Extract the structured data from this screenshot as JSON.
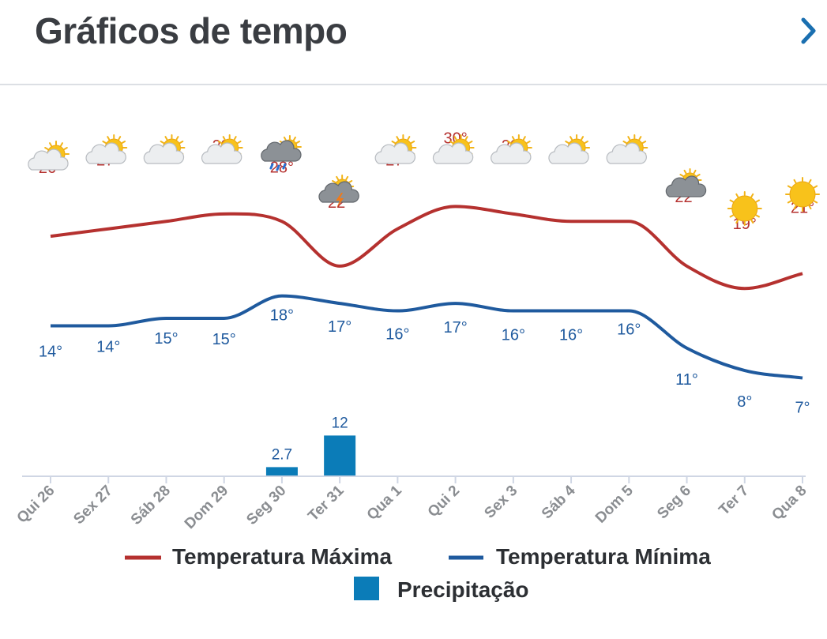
{
  "header": {
    "title": "Gráficos de tempo",
    "next_icon": "chevron-right-icon"
  },
  "colors": {
    "max": "#b5312f",
    "min": "#1f5a9e",
    "precip": "#0b7cb8",
    "axis": "#cfd6e4"
  },
  "chart_data": {
    "type": "line",
    "categories": [
      "Qui 26",
      "Sex 27",
      "Sáb 28",
      "Dom 29",
      "Seg 30",
      "Ter 31",
      "Qua 1",
      "Qui 2",
      "Sex 3",
      "Sáb 4",
      "Dom 5",
      "Seg 6",
      "Ter 7",
      "Qua 8"
    ],
    "series": [
      {
        "name": "Temperatura Máxima",
        "values": [
          26,
          27,
          28,
          29,
          28,
          22,
          27,
          30,
          29,
          28,
          28,
          22,
          19,
          21
        ]
      },
      {
        "name": "Temperatura Mínima",
        "values": [
          14,
          14,
          15,
          15,
          18,
          17,
          16,
          17,
          16,
          16,
          16,
          11,
          8,
          7
        ]
      },
      {
        "name": "Precipitação",
        "type": "bar",
        "values": [
          0,
          0,
          0,
          0,
          2.7,
          12,
          0,
          0,
          0,
          0,
          0,
          0,
          0,
          0
        ],
        "labels": [
          "",
          "",
          "",
          "",
          "2.7",
          "12",
          "",
          "",
          "",
          "",
          "",
          "",
          "",
          ""
        ]
      }
    ],
    "weather_icons": [
      "sun-cloud",
      "sun-cloud",
      "sun-cloud",
      "sun-cloud",
      "rain-cloud",
      "thunderstorm",
      "sun-cloud",
      "sun-cloud",
      "sun-cloud",
      "sun-cloud",
      "sun-cloud",
      "cloudy",
      "sun",
      "sun"
    ],
    "legend": [
      "Temperatura Máxima",
      "Temperatura Mínima",
      "Precipitação"
    ],
    "legend_position": "bottom"
  }
}
